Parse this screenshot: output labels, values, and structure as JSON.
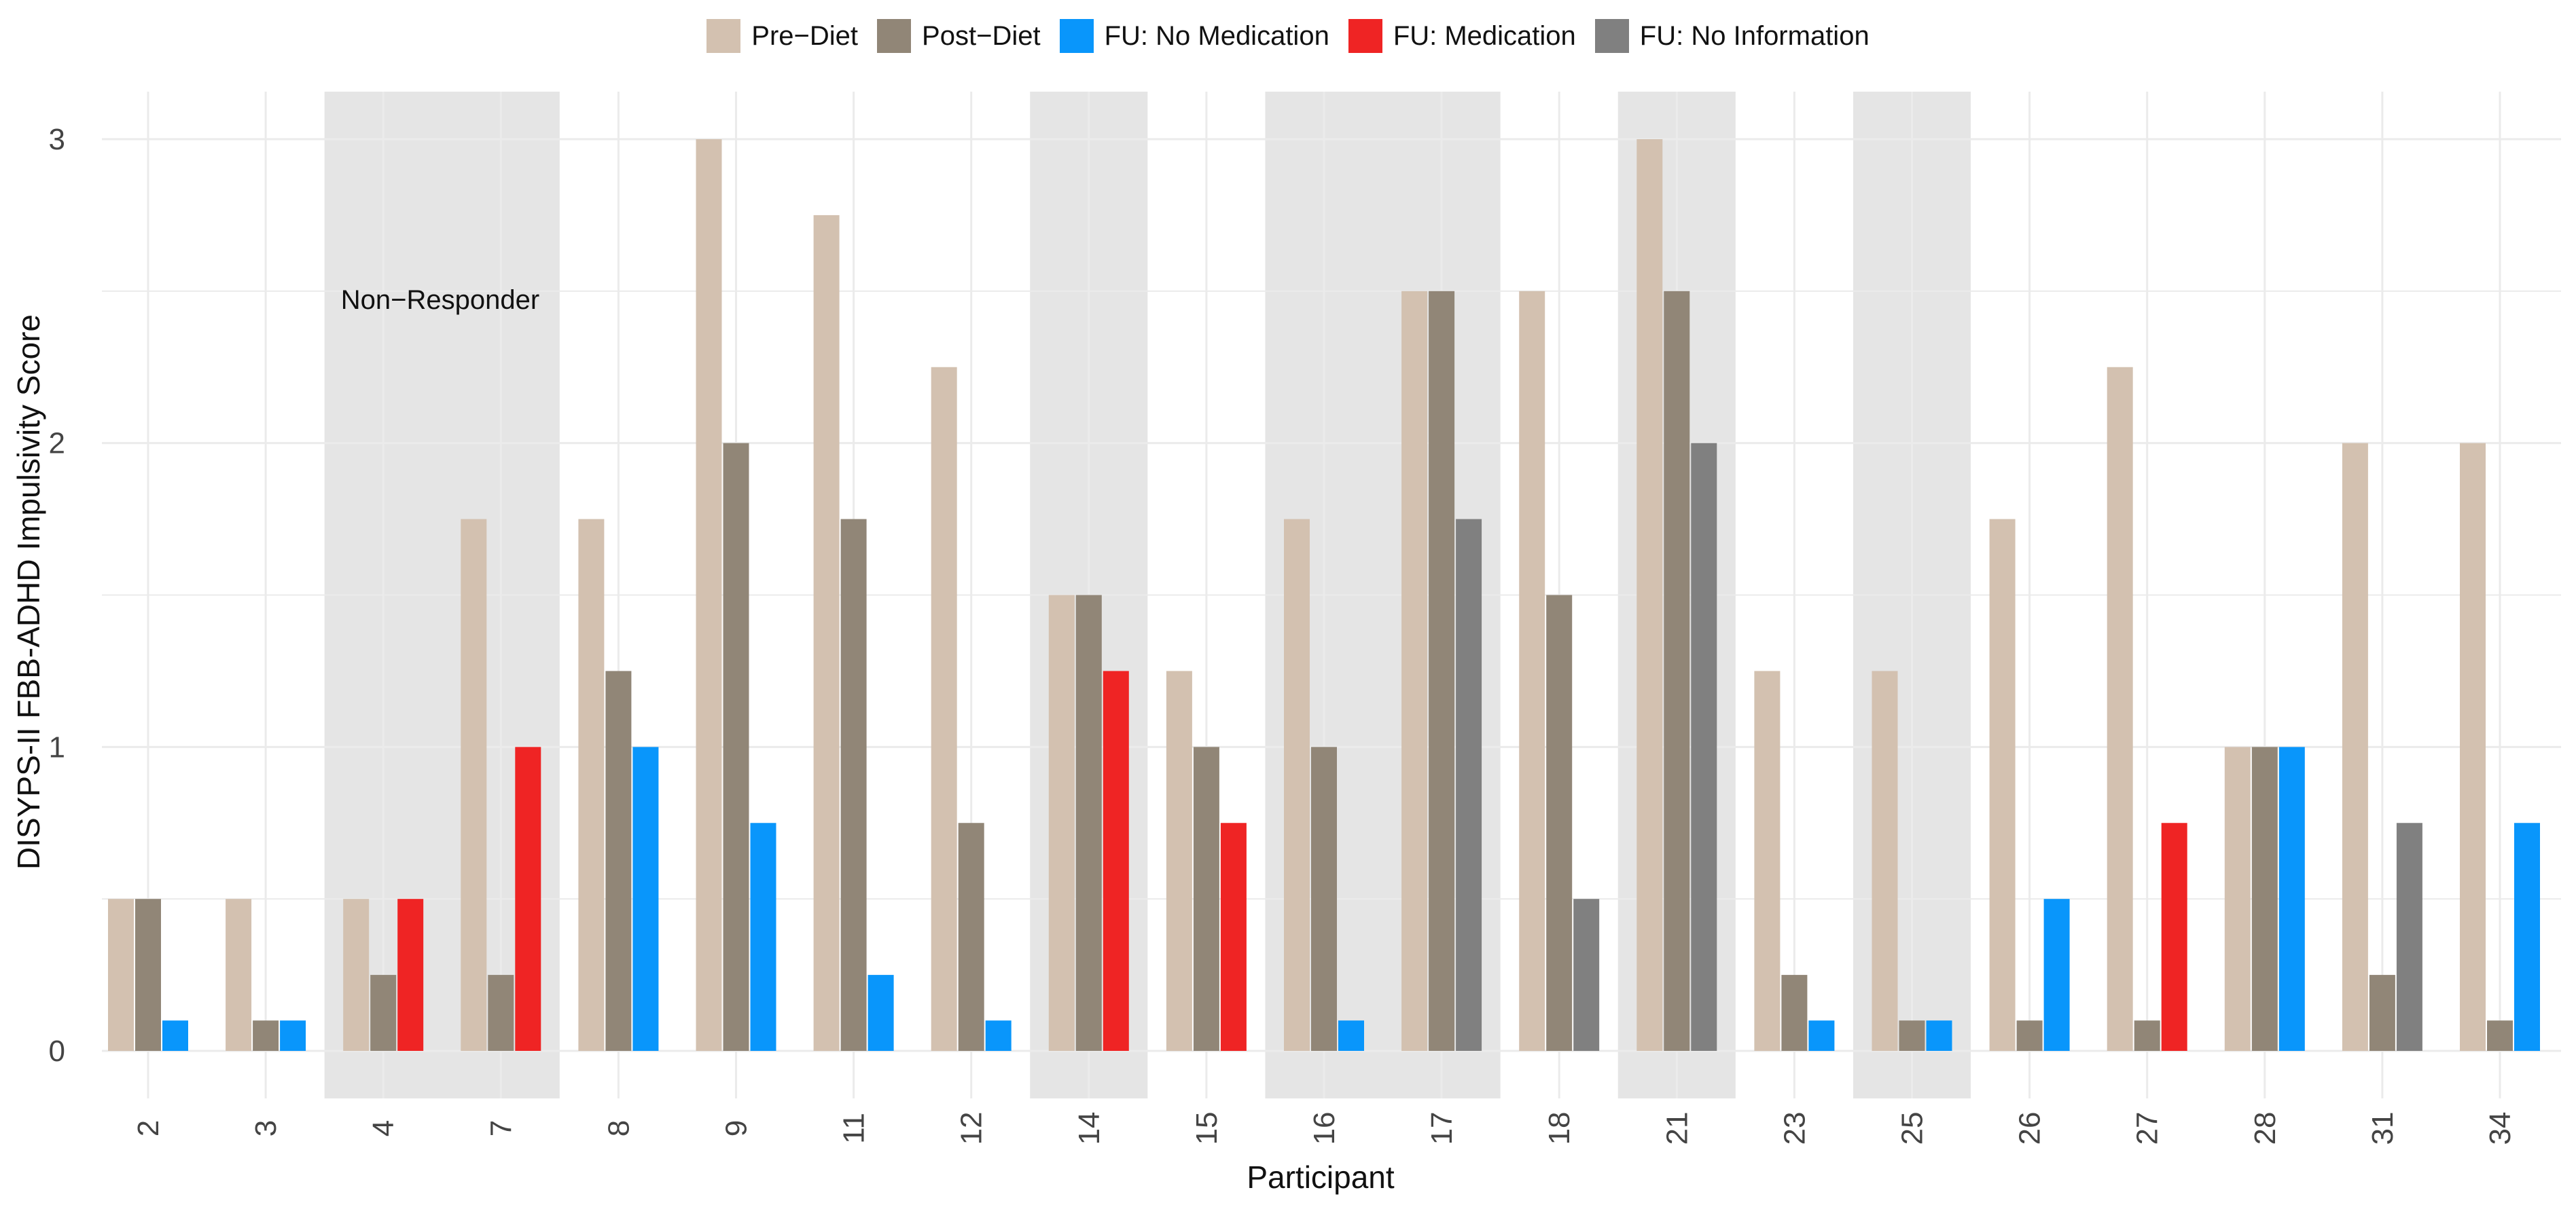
{
  "chart_data": {
    "type": "bar",
    "title": "",
    "xlabel": "Participant",
    "ylabel": "DISYPS-II FBB-ADHD Impulsivity Score",
    "ylim": [
      0,
      3
    ],
    "yticks": [
      0,
      1,
      2,
      3
    ],
    "legend_position": "top",
    "categories": [
      "2",
      "3",
      "4",
      "7",
      "8",
      "9",
      "11",
      "12",
      "14",
      "15",
      "16",
      "17",
      "18",
      "21",
      "23",
      "25",
      "26",
      "27",
      "28",
      "31",
      "34"
    ],
    "series": [
      {
        "name": "Pre−Diet",
        "color": "#d3c1b0",
        "values": [
          0.5,
          0.5,
          0.5,
          1.75,
          1.75,
          3.0,
          2.75,
          2.25,
          1.5,
          1.25,
          1.75,
          2.5,
          2.5,
          3.0,
          1.25,
          1.25,
          1.75,
          2.25,
          1.0,
          2.0,
          2.0
        ]
      },
      {
        "name": "Post−Diet",
        "color": "#918677",
        "values": [
          0.5,
          0.1,
          0.25,
          0.25,
          1.25,
          2.0,
          1.75,
          0.75,
          1.5,
          1.0,
          1.0,
          2.5,
          1.5,
          2.5,
          0.25,
          0.1,
          0.1,
          0.1,
          1.0,
          0.25,
          0.1
        ]
      },
      {
        "name": "FU: No Medication",
        "color": "#0996fb",
        "values": [
          0.1,
          0.1,
          null,
          null,
          1.0,
          0.75,
          0.25,
          0.1,
          null,
          null,
          0.1,
          null,
          null,
          null,
          0.1,
          0.1,
          0.5,
          null,
          1.0,
          null,
          0.75
        ]
      },
      {
        "name": "FU: Medication",
        "color": "#ef2424",
        "values": [
          null,
          null,
          0.5,
          1.0,
          null,
          null,
          null,
          null,
          1.25,
          0.75,
          null,
          null,
          null,
          null,
          null,
          null,
          null,
          0.75,
          null,
          null,
          null
        ]
      },
      {
        "name": "FU: No Information",
        "color": "#808080",
        "values": [
          null,
          null,
          null,
          null,
          null,
          null,
          null,
          null,
          null,
          null,
          null,
          1.75,
          0.5,
          2.0,
          null,
          null,
          null,
          null,
          null,
          0.75,
          null
        ]
      }
    ],
    "non_responder_groups": [
      [
        "4",
        "7"
      ],
      [
        "14"
      ],
      [
        "16",
        "17"
      ],
      [
        "21"
      ],
      [
        "25"
      ]
    ],
    "annotation": "Non−Responder",
    "grid": true
  },
  "colors": {
    "background": "#ffffff",
    "grid": "#ebebeb",
    "shade": "#e5e5e5"
  }
}
